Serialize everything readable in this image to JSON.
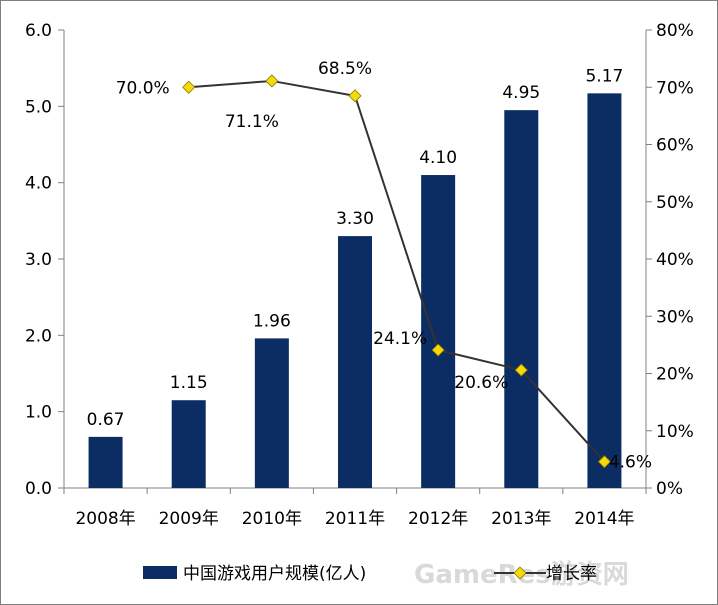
{
  "chart_data": {
    "type": "bar",
    "categories": [
      "2008年",
      "2009年",
      "2010年",
      "2011年",
      "2012年",
      "2013年",
      "2014年"
    ],
    "series": [
      {
        "name": "中国游戏用户规模(亿人)",
        "type": "bar",
        "axis": "left",
        "color": "#0c2d63",
        "values": [
          0.67,
          1.15,
          1.96,
          3.3,
          4.1,
          4.95,
          5.17
        ],
        "labels": [
          "0.67",
          "1.15",
          "1.96",
          "3.30",
          "4.10",
          "4.95",
          "5.17"
        ]
      },
      {
        "name": "增长率",
        "type": "line",
        "axis": "right",
        "line_color": "#333333",
        "marker_color": "#f5d90a",
        "marker": "diamond",
        "values": [
          null,
          70.0,
          71.1,
          68.5,
          24.1,
          20.6,
          4.6
        ],
        "labels": [
          "",
          "70.0%",
          "71.1%",
          "68.5%",
          "24.1%",
          "20.6%",
          "4.6%"
        ]
      }
    ],
    "y_left": {
      "ylim": [
        0,
        6.0
      ],
      "ticks": [
        "0.0",
        "1.0",
        "2.0",
        "3.0",
        "4.0",
        "5.0",
        "6.0"
      ]
    },
    "y_right": {
      "ylim": [
        0,
        80
      ],
      "ticks": [
        "0%",
        "10%",
        "20%",
        "30%",
        "40%",
        "50%",
        "60%",
        "70%",
        "80%"
      ]
    },
    "title": "",
    "xlabel": "",
    "ylabel": "",
    "grid": false,
    "legend_position": "bottom"
  },
  "watermark": "GameRes游资网"
}
